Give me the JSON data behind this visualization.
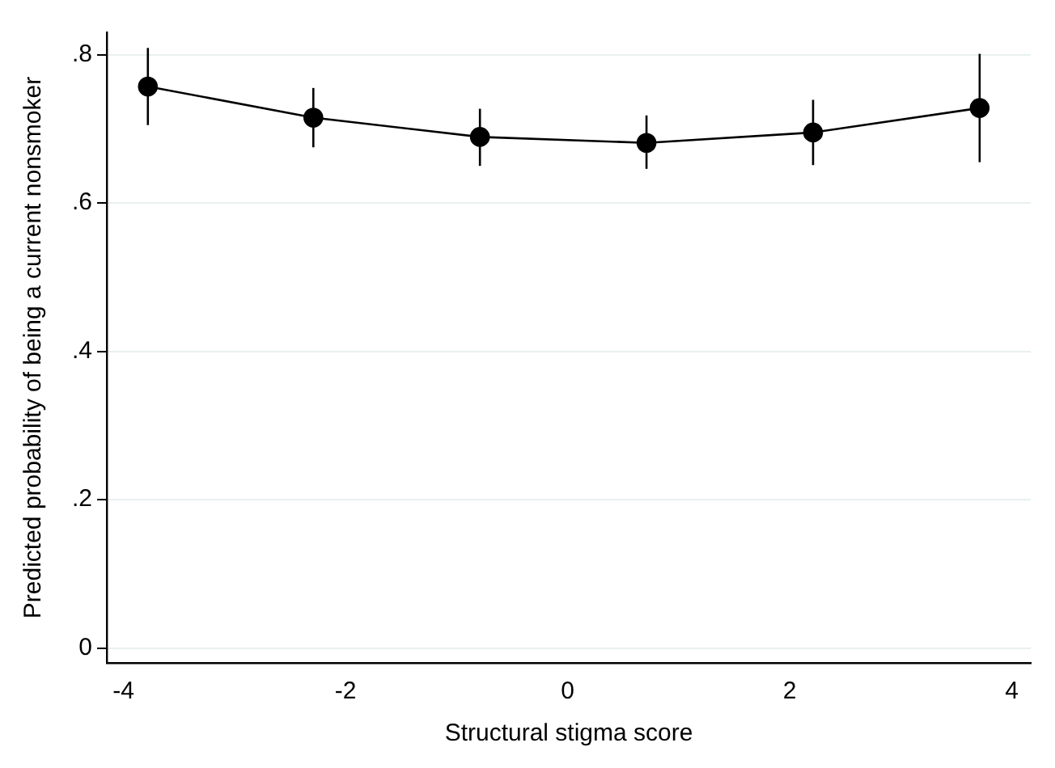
{
  "chart_data": {
    "type": "line",
    "xlabel": "Structural stigma score",
    "ylabel": "Predicted probability of being a current nonsmoker",
    "x": [
      -3.78,
      -2.29,
      -0.79,
      0.71,
      2.21,
      3.71
    ],
    "series": [
      {
        "color": "#000000",
        "values": [
          0.757,
          0.715,
          0.689,
          0.681,
          0.695,
          0.728
        ],
        "errors": [
          [
            0.705,
            0.809
          ],
          [
            0.675,
            0.755
          ],
          [
            0.65,
            0.727
          ],
          [
            0.646,
            0.718
          ],
          [
            0.651,
            0.739
          ],
          [
            0.655,
            0.801
          ]
        ]
      }
    ],
    "xlim": [
      -4.15,
      4.17
    ],
    "xticks": [
      -4,
      -2,
      0,
      2,
      4
    ],
    "ylim": [
      -0.02,
      0.83
    ],
    "yticks": [
      {
        "value": 0,
        "label": "0"
      },
      {
        "value": 0.2,
        "label": ".2"
      },
      {
        "value": 0.4,
        "label": ".4"
      },
      {
        "value": 0.6,
        "label": ".6"
      },
      {
        "value": 0.8,
        "label": ".8"
      }
    ],
    "grid": "y",
    "legend": false,
    "marker": "circle",
    "line_style": "solid"
  }
}
